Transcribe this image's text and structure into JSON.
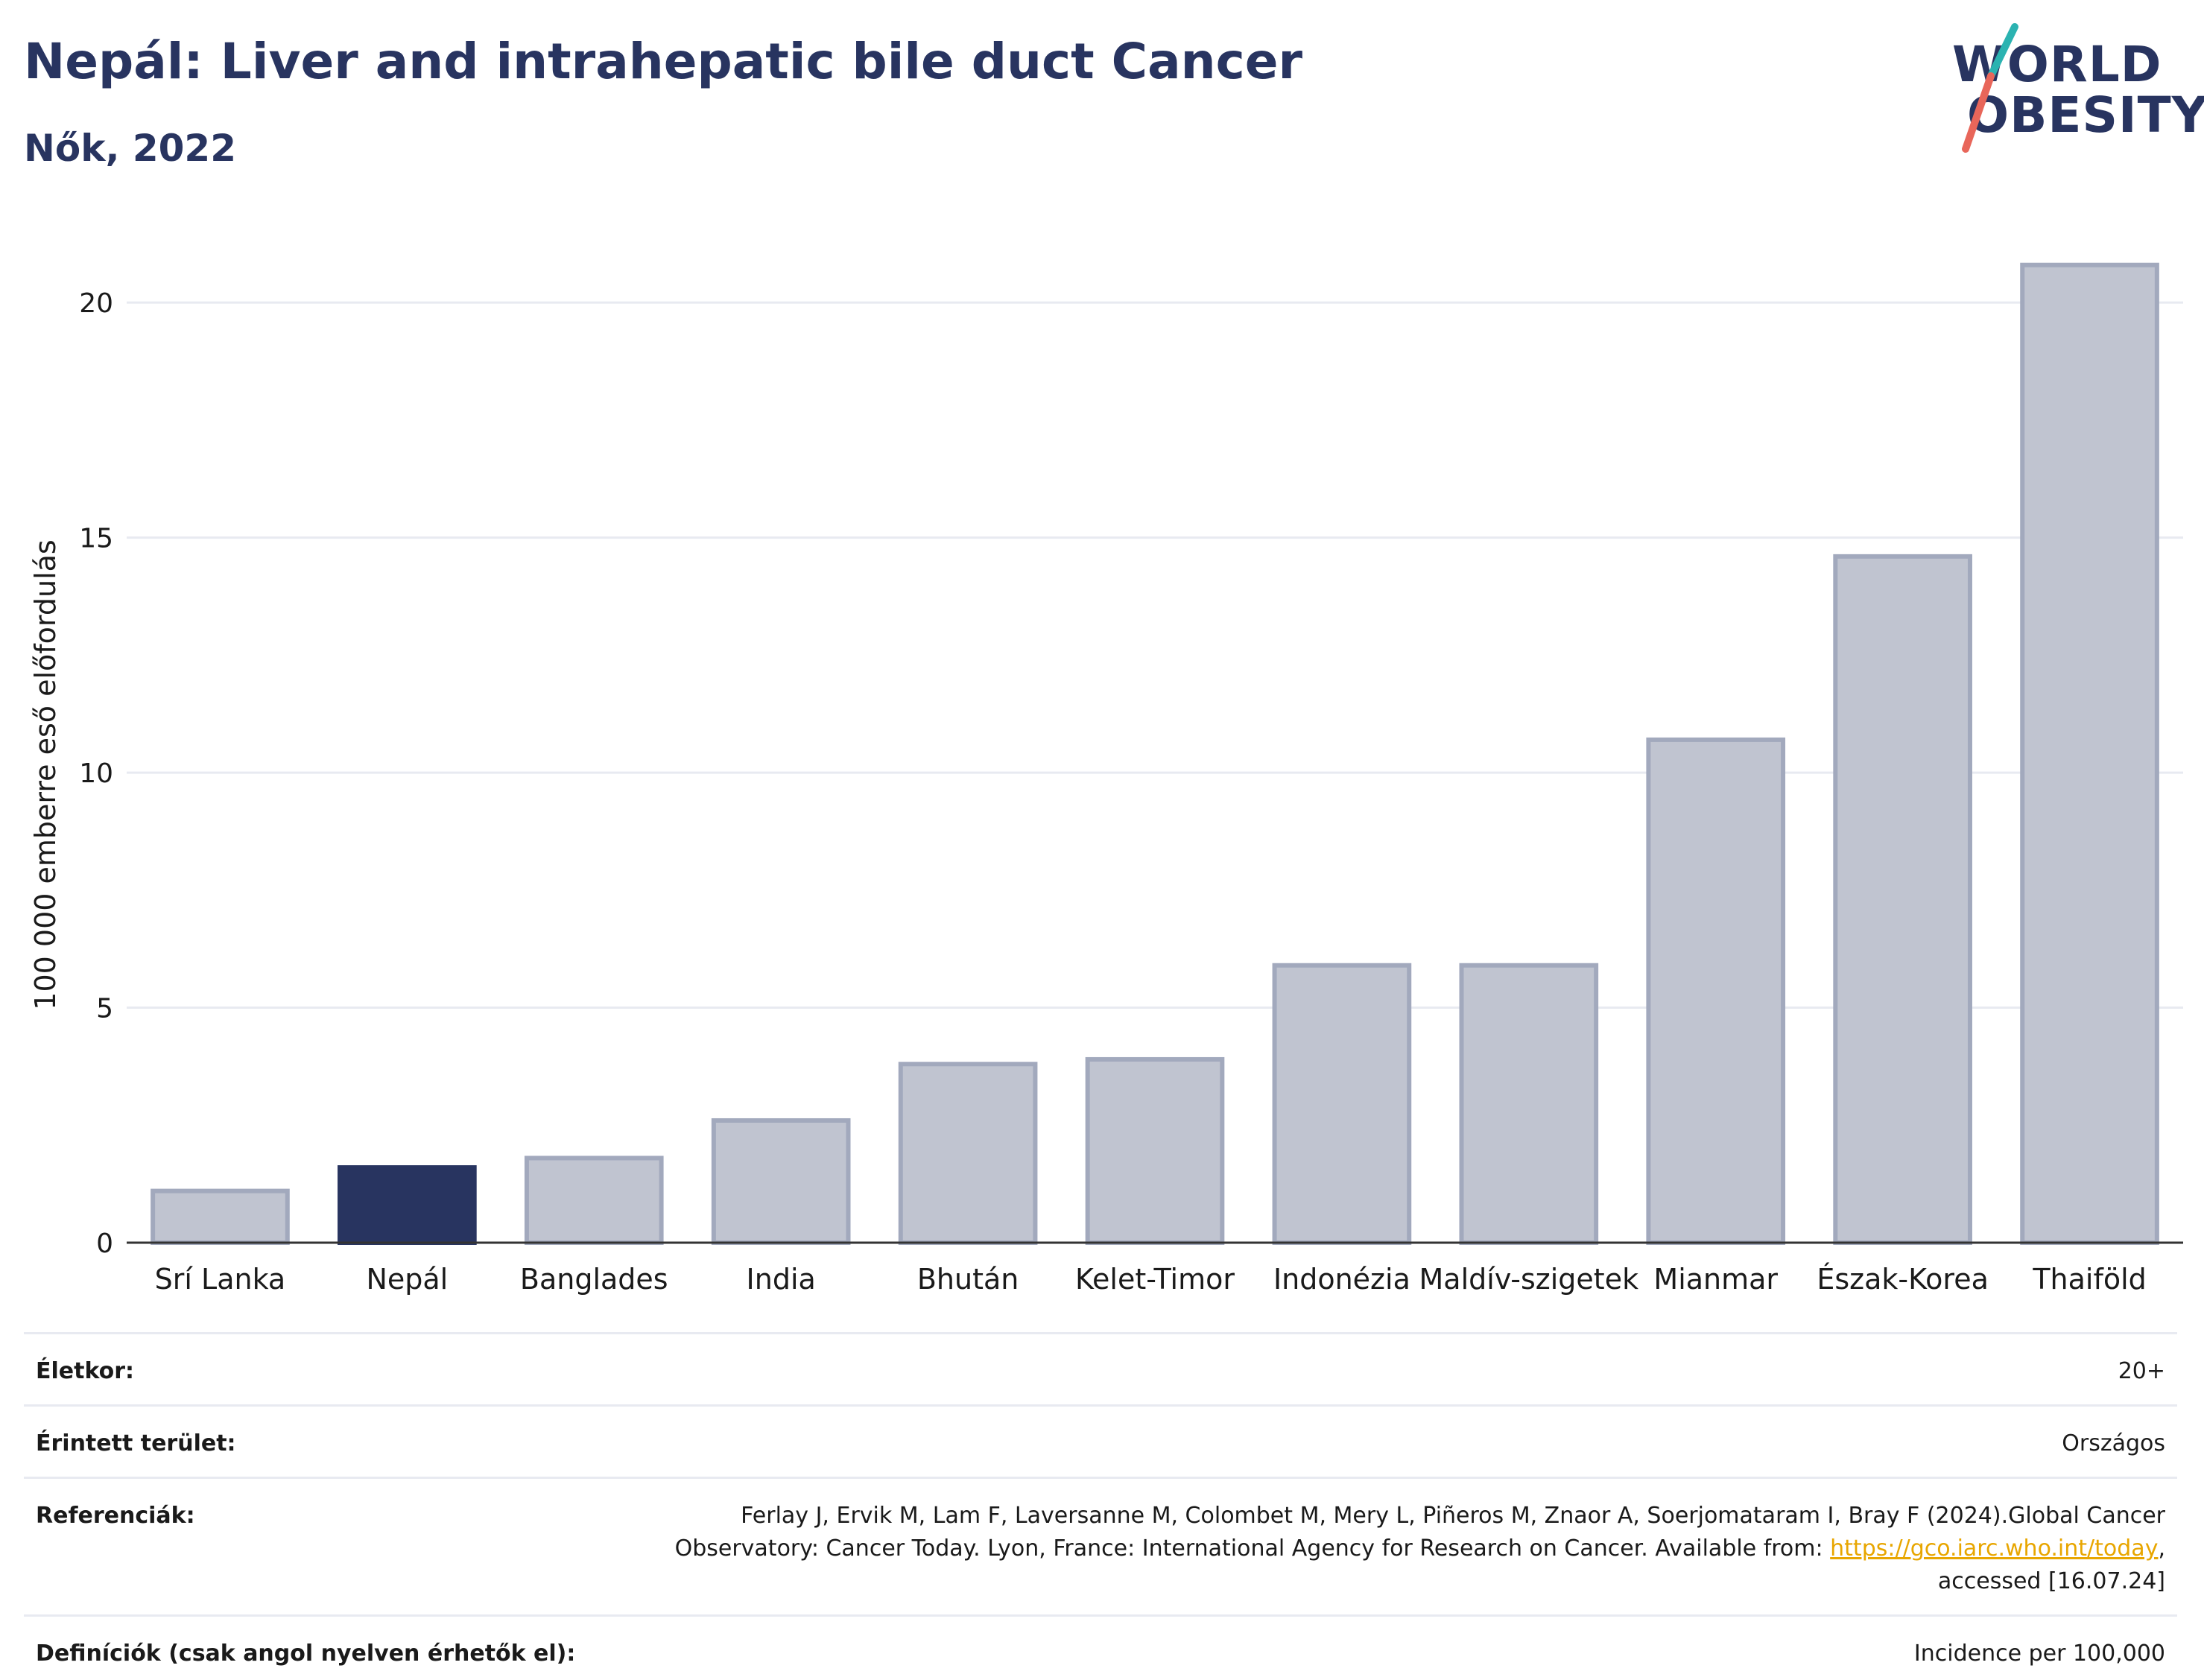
{
  "header": {
    "title": "Nepál: Liver and intrahepatic bile duct Cancer",
    "subtitle": "Nők, 2022"
  },
  "logo": {
    "line1": "WORLD",
    "line2": "OBESITY",
    "colors": {
      "text": "#283460",
      "slash_top": "#2bb3b1",
      "slash_bottom": "#e8665a"
    }
  },
  "chart_data": {
    "type": "bar",
    "categories": [
      "Srí Lanka",
      "Nepál",
      "Banglades",
      "India",
      "Bhután",
      "Kelet-Timor",
      "Indonézia",
      "Maldív-szigetek",
      "Mianmar",
      "Észak-Korea",
      "Thaiföld"
    ],
    "values": [
      1.1,
      1.6,
      1.8,
      2.6,
      3.8,
      3.9,
      5.9,
      5.9,
      10.7,
      14.6,
      20.8
    ],
    "highlight": "Nepál",
    "ylabel": "100 000 emberre eső előfordulás",
    "xlabel": "",
    "ylim": [
      0,
      22
    ],
    "yticks": [
      0,
      5,
      10,
      15,
      20
    ],
    "grid": true,
    "colors": {
      "bar": "#c0c4d0",
      "bar_border": "#a2a9bd",
      "highlight": "#283460",
      "grid": "#e8eaf1",
      "axis": "#333333"
    }
  },
  "info": {
    "age_label": "Életkor:",
    "age_value": "20+",
    "area_label": "Érintett terület:",
    "area_value": "Országos",
    "ref_label": "Referenciák:",
    "ref_text_1": "Ferlay J, Ervik M, Lam F, Laversanne M, Colombet M, Mery L, Piñeros M, Znaor A, Soerjomataram I, Bray F (2024).Global Cancer Observatory: Cancer Today. Lyon, France: International Agency for Research on Cancer. Available from: ",
    "ref_link": "https://gco.iarc.who.int/today",
    "ref_text_2": ", accessed [16.07.24]",
    "def_label": "Definíciók (csak angol nyelven érhetők el):",
    "def_value": "Incidence per 100,000"
  }
}
